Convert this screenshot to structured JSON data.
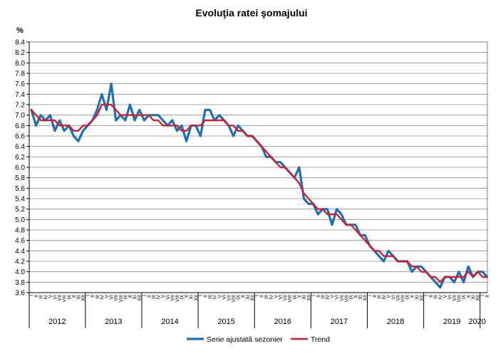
{
  "chart_data": {
    "type": "line",
    "title": "Evoluţia ratei şomajului",
    "ylabel": "%",
    "xlabel": "",
    "ylim": [
      3.6,
      8.4
    ],
    "ytick_step": 0.2,
    "grid": true,
    "legend_position": "bottom-center",
    "years": [
      "2012",
      "2013",
      "2014",
      "2015",
      "2016",
      "2017",
      "2018",
      "2019",
      "2020"
    ],
    "month_labels": [
      "I",
      "II",
      "III",
      "IV",
      "V",
      "VI",
      "VII",
      "VIII",
      "IX",
      "X",
      "XI",
      "XII"
    ],
    "series": [
      {
        "name": "Serie ajustată sezonier",
        "color": "#1f6fb4",
        "values": [
          7.1,
          6.8,
          7.0,
          6.9,
          7.0,
          6.7,
          6.9,
          6.7,
          6.8,
          6.6,
          6.5,
          6.7,
          6.8,
          6.9,
          7.1,
          7.4,
          7.1,
          7.6,
          6.9,
          7.0,
          6.9,
          7.2,
          6.9,
          7.1,
          6.9,
          7.0,
          7.0,
          7.0,
          6.9,
          6.8,
          6.9,
          6.7,
          6.8,
          6.5,
          6.8,
          6.8,
          6.6,
          7.1,
          7.1,
          6.9,
          7.0,
          6.9,
          6.8,
          6.6,
          6.8,
          6.7,
          6.6,
          6.6,
          6.5,
          6.4,
          6.2,
          6.2,
          6.1,
          6.1,
          6.0,
          5.9,
          5.8,
          6.0,
          5.4,
          5.3,
          5.3,
          5.1,
          5.2,
          5.2,
          4.9,
          5.2,
          5.1,
          4.9,
          4.9,
          4.9,
          4.7,
          4.7,
          4.5,
          4.4,
          4.3,
          4.2,
          4.4,
          4.3,
          4.2,
          4.2,
          4.2,
          4.0,
          4.1,
          4.1,
          4.0,
          3.9,
          3.8,
          3.7,
          3.9,
          3.9,
          3.8,
          4.0,
          3.8,
          4.1,
          3.9,
          4.0,
          4.0,
          3.9
        ],
        "total_points": 98
      },
      {
        "name": "Trend",
        "color": "#d0202e",
        "values": [
          7.1,
          7.0,
          6.9,
          6.9,
          6.9,
          6.9,
          6.8,
          6.8,
          6.8,
          6.7,
          6.7,
          6.8,
          6.8,
          6.9,
          7.0,
          7.2,
          7.2,
          7.2,
          7.1,
          7.0,
          7.0,
          7.0,
          7.0,
          7.0,
          7.0,
          7.0,
          6.9,
          6.9,
          6.8,
          6.8,
          6.8,
          6.8,
          6.7,
          6.7,
          6.8,
          6.8,
          6.8,
          6.9,
          6.9,
          6.9,
          6.9,
          6.9,
          6.8,
          6.8,
          6.7,
          6.7,
          6.6,
          6.6,
          6.5,
          6.4,
          6.3,
          6.2,
          6.1,
          6.0,
          6.0,
          5.9,
          5.8,
          5.7,
          5.5,
          5.4,
          5.3,
          5.2,
          5.2,
          5.1,
          5.1,
          5.1,
          5.0,
          4.9,
          4.9,
          4.8,
          4.7,
          4.6,
          4.5,
          4.4,
          4.4,
          4.3,
          4.3,
          4.3,
          4.2,
          4.2,
          4.2,
          4.1,
          4.1,
          4.0,
          4.0,
          3.9,
          3.9,
          3.8,
          3.9,
          3.9,
          3.9,
          3.9,
          3.9,
          4.0,
          3.9,
          4.0,
          3.9,
          3.9
        ]
      }
    ]
  }
}
